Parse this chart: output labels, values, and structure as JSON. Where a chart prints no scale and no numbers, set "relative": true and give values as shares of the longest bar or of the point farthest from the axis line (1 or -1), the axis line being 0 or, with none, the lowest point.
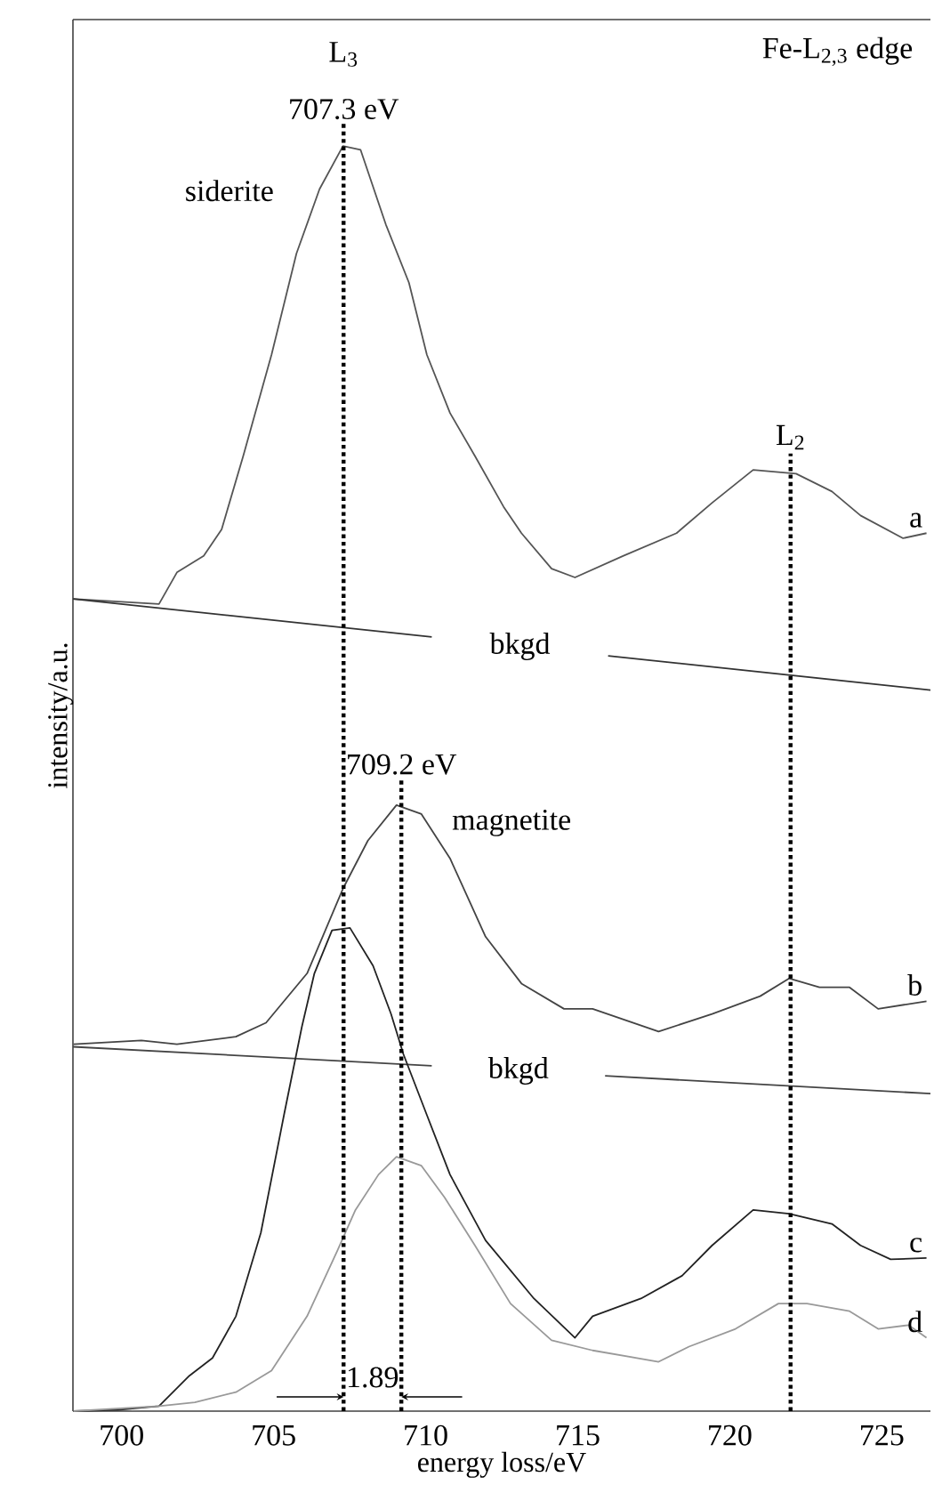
{
  "chart_data": {
    "type": "line",
    "relative": true,
    "xlabel": "energy loss/eV",
    "ylabel": "intensity/a.u.",
    "xlim": [
      698.4,
      726.6
    ],
    "xticks": [
      700,
      705,
      710,
      715,
      720,
      725
    ],
    "marker": "none",
    "line_style": "solid",
    "series": [
      {
        "name": "a",
        "color": "#555555",
        "x": [
          698.4,
          701.23,
          701.82,
          702.7,
          703.29,
          704.0,
          704.93,
          705.75,
          706.51,
          707.28,
          707.86,
          708.69,
          709.45,
          710.04,
          710.8,
          711.62,
          712.56,
          713.15,
          714.14,
          714.91,
          716.49,
          718.25,
          719.42,
          720.77,
          722.18,
          723.36,
          724.3,
          725.7,
          726.47
        ],
        "values": [
          0.642,
          0.638,
          0.663,
          0.676,
          0.697,
          0.755,
          0.835,
          0.915,
          0.966,
          1.0,
          0.997,
          0.938,
          0.892,
          0.835,
          0.789,
          0.755,
          0.715,
          0.694,
          0.666,
          0.659,
          0.676,
          0.694,
          0.718,
          0.744,
          0.741,
          0.727,
          0.708,
          0.69,
          0.694
        ]
      },
      {
        "name": "bkgd",
        "color": "#333333",
        "x": [
          698.4,
          710.2,
          713.0,
          716.0,
          726.6
        ],
        "values": [
          0.642,
          0.612,
          null,
          0.597,
          0.57
        ]
      },
      {
        "name": "b",
        "color": "#444444",
        "x": [
          698.42,
          700.65,
          701.82,
          703.76,
          704.75,
          706.1,
          707.28,
          708.1,
          709.04,
          709.86,
          710.8,
          711.97,
          713.15,
          714.55,
          715.49,
          717.66,
          719.42,
          721.0,
          721.95,
          722.95,
          723.94,
          724.88,
          726.47
        ],
        "values": [
          0.29,
          0.293,
          0.29,
          0.296,
          0.307,
          0.346,
          0.413,
          0.451,
          0.479,
          0.472,
          0.437,
          0.375,
          0.338,
          0.318,
          0.318,
          0.3,
          0.314,
          0.328,
          0.342,
          0.335,
          0.335,
          0.318,
          0.324
        ]
      },
      {
        "name": "bkgd",
        "color": "#444444",
        "x": [
          698.4,
          710.2,
          713.0,
          715.9,
          726.6
        ],
        "values": [
          0.288,
          0.273,
          null,
          0.265,
          0.251
        ]
      },
      {
        "name": "c",
        "color": "#222222",
        "x": [
          698.42,
          699.88,
          701.23,
          702.23,
          702.99,
          703.76,
          704.58,
          705.34,
          705.93,
          706.34,
          706.92,
          707.51,
          708.27,
          708.86,
          709.27,
          710.04,
          710.8,
          711.97,
          713.56,
          714.91,
          715.49,
          717.08,
          718.43,
          719.42,
          720.77,
          721.95,
          723.36,
          724.3,
          725.29,
          726.47
        ],
        "values": [
          0,
          0.001,
          0.004,
          0.028,
          0.042,
          0.075,
          0.141,
          0.234,
          0.304,
          0.346,
          0.38,
          0.382,
          0.352,
          0.314,
          0.282,
          0.234,
          0.187,
          0.135,
          0.089,
          0.058,
          0.075,
          0.089,
          0.107,
          0.131,
          0.159,
          0.156,
          0.148,
          0.131,
          0.12,
          0.121
        ]
      },
      {
        "name": "d",
        "color": "#999999",
        "x": [
          698.42,
          701.23,
          702.41,
          703.76,
          704.93,
          706.1,
          707.1,
          707.69,
          708.45,
          709.04,
          709.86,
          710.62,
          711.62,
          712.79,
          714.14,
          715.49,
          717.66,
          718.66,
          720.19,
          721.6,
          722.54,
          723.94,
          724.88,
          725.88,
          726.47
        ],
        "values": [
          0,
          0.004,
          0.007,
          0.015,
          0.032,
          0.075,
          0.127,
          0.159,
          0.187,
          0.201,
          0.194,
          0.169,
          0.131,
          0.085,
          0.056,
          0.048,
          0.039,
          0.051,
          0.065,
          0.085,
          0.085,
          0.079,
          0.065,
          0.068,
          0.058
        ]
      }
    ],
    "ref_lines": [
      {
        "axis": "x",
        "value": 707.3,
        "label": "707.3 eV",
        "line_style": "dotted"
      },
      {
        "axis": "x",
        "value": 709.2,
        "label": "709.2 eV",
        "line_style": "dotted"
      },
      {
        "axis": "x",
        "value": 722.0,
        "label": "L$_{2}$",
        "line_style": "dotted"
      }
    ],
    "annotations": [
      {
        "text": "siderite",
        "x": 707.3,
        "y": 1.0
      },
      {
        "text": "magnetite",
        "x": 709.04,
        "y": 0.479
      },
      "L$_{3}$",
      "Fe-L$_{2,3}$ edge",
      "1.89"
    ]
  }
}
